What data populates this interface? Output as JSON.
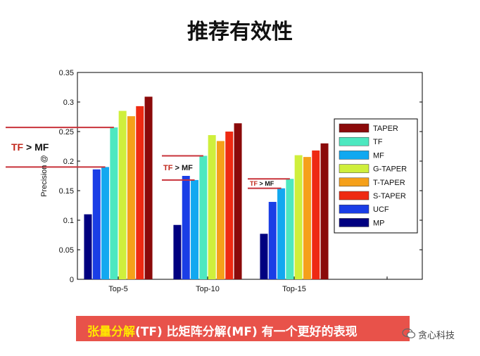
{
  "slide": {
    "title": "推荐有效性",
    "banner": {
      "part1": "张量分解",
      "part2": "(TF) 比矩阵分解(MF) 有一个更好的表现",
      "bg_color": "#e8524a",
      "highlight_color": "#ffe600"
    },
    "watermark": "贪心科技",
    "annotations": [
      {
        "left": "TF",
        "rest": " > MF"
      },
      {
        "left": "TF",
        "rest": " > MF"
      },
      {
        "left": "TF",
        "rest": " > MF"
      }
    ]
  },
  "chart_data": {
    "type": "bar",
    "categories": [
      "Top-5",
      "Top-10",
      "Top-15"
    ],
    "ylabel": "Precision @",
    "ylim": [
      0,
      0.35
    ],
    "yticks": [
      "0",
      "0.05",
      "0.1",
      "0.15",
      "0.2",
      "0.25",
      "0.3",
      "0.35"
    ],
    "legend_position": "right",
    "series": [
      {
        "name": "MP",
        "color": "#000080",
        "values": [
          0.11,
          0.092,
          0.077
        ]
      },
      {
        "name": "UCF",
        "color": "#1a3ee6",
        "values": [
          0.186,
          0.175,
          0.131
        ]
      },
      {
        "name": "MF",
        "color": "#12a8f0",
        "values": [
          0.19,
          0.168,
          0.154
        ]
      },
      {
        "name": "TF",
        "color": "#4de8c0",
        "values": [
          0.257,
          0.209,
          0.17
        ]
      },
      {
        "name": "G-TAPER",
        "color": "#cfef3c",
        "values": [
          0.285,
          0.244,
          0.21
        ]
      },
      {
        "name": "T-TAPER",
        "color": "#f5a01a",
        "values": [
          0.276,
          0.234,
          0.207
        ]
      },
      {
        "name": "S-TAPER",
        "color": "#ee2a12",
        "values": [
          0.293,
          0.25,
          0.218
        ]
      },
      {
        "name": "TAPER",
        "color": "#8b0a0a",
        "values": [
          0.309,
          0.264,
          0.23
        ]
      }
    ],
    "legend_order": [
      "TAPER",
      "TF",
      "MF",
      "G-TAPER",
      "T-TAPER",
      "S-TAPER",
      "UCF",
      "MP"
    ]
  }
}
